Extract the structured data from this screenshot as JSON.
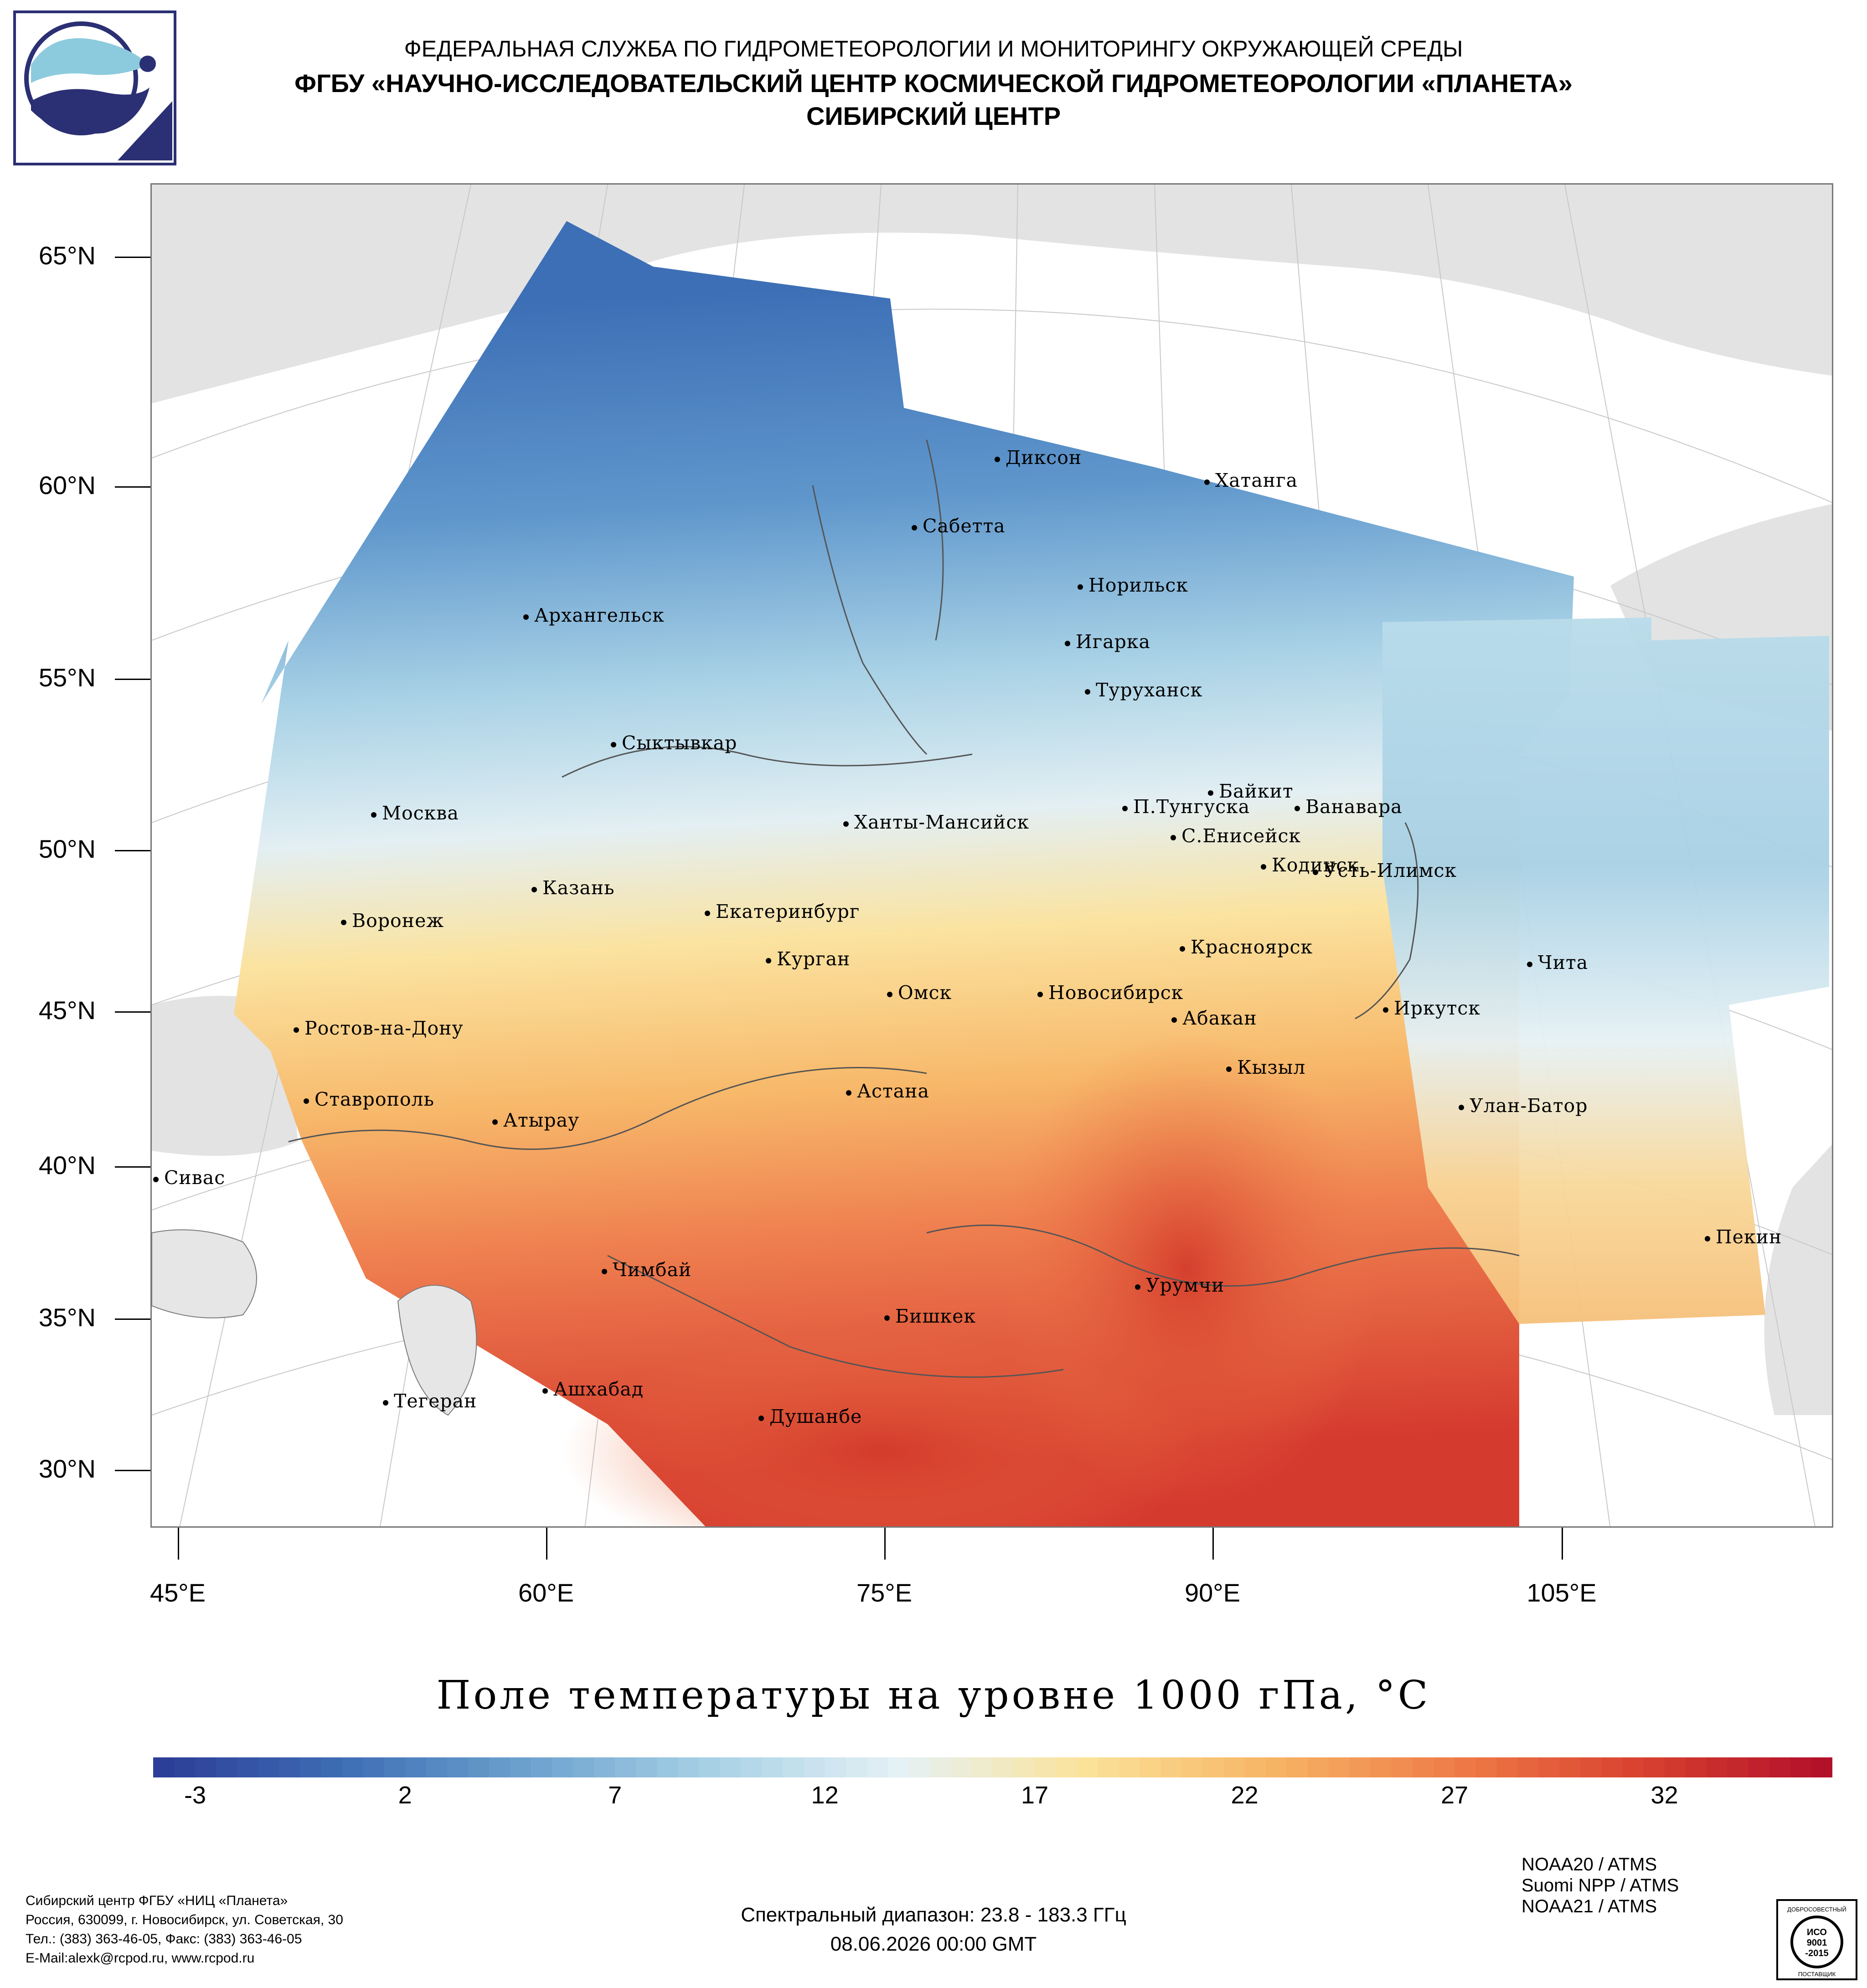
{
  "header": {
    "line1": "ФЕДЕРАЛЬНАЯ СЛУЖБА ПО ГИДРОМЕТЕОРОЛОГИИ И МОНИТОРИНГУ ОКРУЖАЮЩЕЙ СРЕДЫ",
    "line2": "ФГБУ «НАУЧНО-ИССЛЕДОВАТЕЛЬСКИЙ ЦЕНТР КОСМИЧЕСКОЙ ГИДРОМЕТЕОРОЛОГИИ «ПЛАНЕТА»",
    "line3": "СИБИРСКИЙ ЦЕНТР"
  },
  "logo": {
    "icon": "planeta-logo-icon"
  },
  "map": {
    "lat_labels": [
      "65°N",
      "60°N",
      "55°N",
      "50°N",
      "45°N",
      "40°N",
      "35°N",
      "30°N"
    ],
    "lon_labels": [
      "45°E",
      "60°E",
      "75°E",
      "90°E",
      "105°E"
    ],
    "cities": [
      {
        "name": "Диксон"
      },
      {
        "name": "Хатанга"
      },
      {
        "name": "Сабетта"
      },
      {
        "name": "Норильск"
      },
      {
        "name": "Архангельск"
      },
      {
        "name": "Игарка"
      },
      {
        "name": "Туруханск"
      },
      {
        "name": "Сыктывкар"
      },
      {
        "name": "Байкит"
      },
      {
        "name": "П.Тунгуска"
      },
      {
        "name": "Ванавара"
      },
      {
        "name": "Москва"
      },
      {
        "name": "Ханты-Мансийск"
      },
      {
        "name": "С.Енисейск"
      },
      {
        "name": "Кодинск"
      },
      {
        "name": "Усть-Илимск"
      },
      {
        "name": "Казань"
      },
      {
        "name": "Екатеринбург"
      },
      {
        "name": "Воронеж"
      },
      {
        "name": "Красноярск"
      },
      {
        "name": "Курган"
      },
      {
        "name": "Чита"
      },
      {
        "name": "Омск"
      },
      {
        "name": "Новосибирск"
      },
      {
        "name": "Иркутск"
      },
      {
        "name": "Ростов-на-Дону"
      },
      {
        "name": "Абакан"
      },
      {
        "name": "Кызыл"
      },
      {
        "name": "Ставрополь"
      },
      {
        "name": "Астана"
      },
      {
        "name": "Улан-Батор"
      },
      {
        "name": "Атырау"
      },
      {
        "name": "Сивас"
      },
      {
        "name": "Пекин"
      },
      {
        "name": "Чимбай"
      },
      {
        "name": "Урумчи"
      },
      {
        "name": "Бишкек"
      },
      {
        "name": "Ашхабад"
      },
      {
        "name": "Тегеран"
      },
      {
        "name": "Душанбе"
      }
    ]
  },
  "title": "Поле температуры на уровне 1000 гПа, °С",
  "colorbar": {
    "ticks": [
      "-3",
      "2",
      "7",
      "12",
      "17",
      "22",
      "27",
      "32"
    ],
    "min": -4,
    "max": 36,
    "colors": [
      "#2c3e97",
      "#3f6fb5",
      "#6ea3cf",
      "#a9d2e6",
      "#e5f1f5",
      "#fbe39a",
      "#f7b565",
      "#ef7d49",
      "#d9422f",
      "#b3102a"
    ]
  },
  "footer": {
    "org_lines": [
      "Сибирский центр ФГБУ «НИЦ «Планета»",
      "Россия, 630099, г. Новосибирск, ул. Советская, 30",
      "Тел.: (383) 363-46-05, Факс: (383) 363-46-05",
      "E-Mail:alexk@rcpod.ru, www.rcpod.ru"
    ],
    "spectral": "Спектральный диапазон: 23.8 - 183.3 ГГц",
    "datetime": "08.06.2026 00:00 GMT",
    "sensors": [
      "NOAA20 / ATMS",
      "Suomi NPP / ATMS",
      "NOAA21 / ATMS"
    ],
    "iso_badge": {
      "top": "ДОБРОСОВЕСТНЫЙ",
      "l1": "ИСО",
      "l2": "9001",
      "l3": "-2015",
      "bottom": "ПОСТАВЩИК"
    }
  }
}
